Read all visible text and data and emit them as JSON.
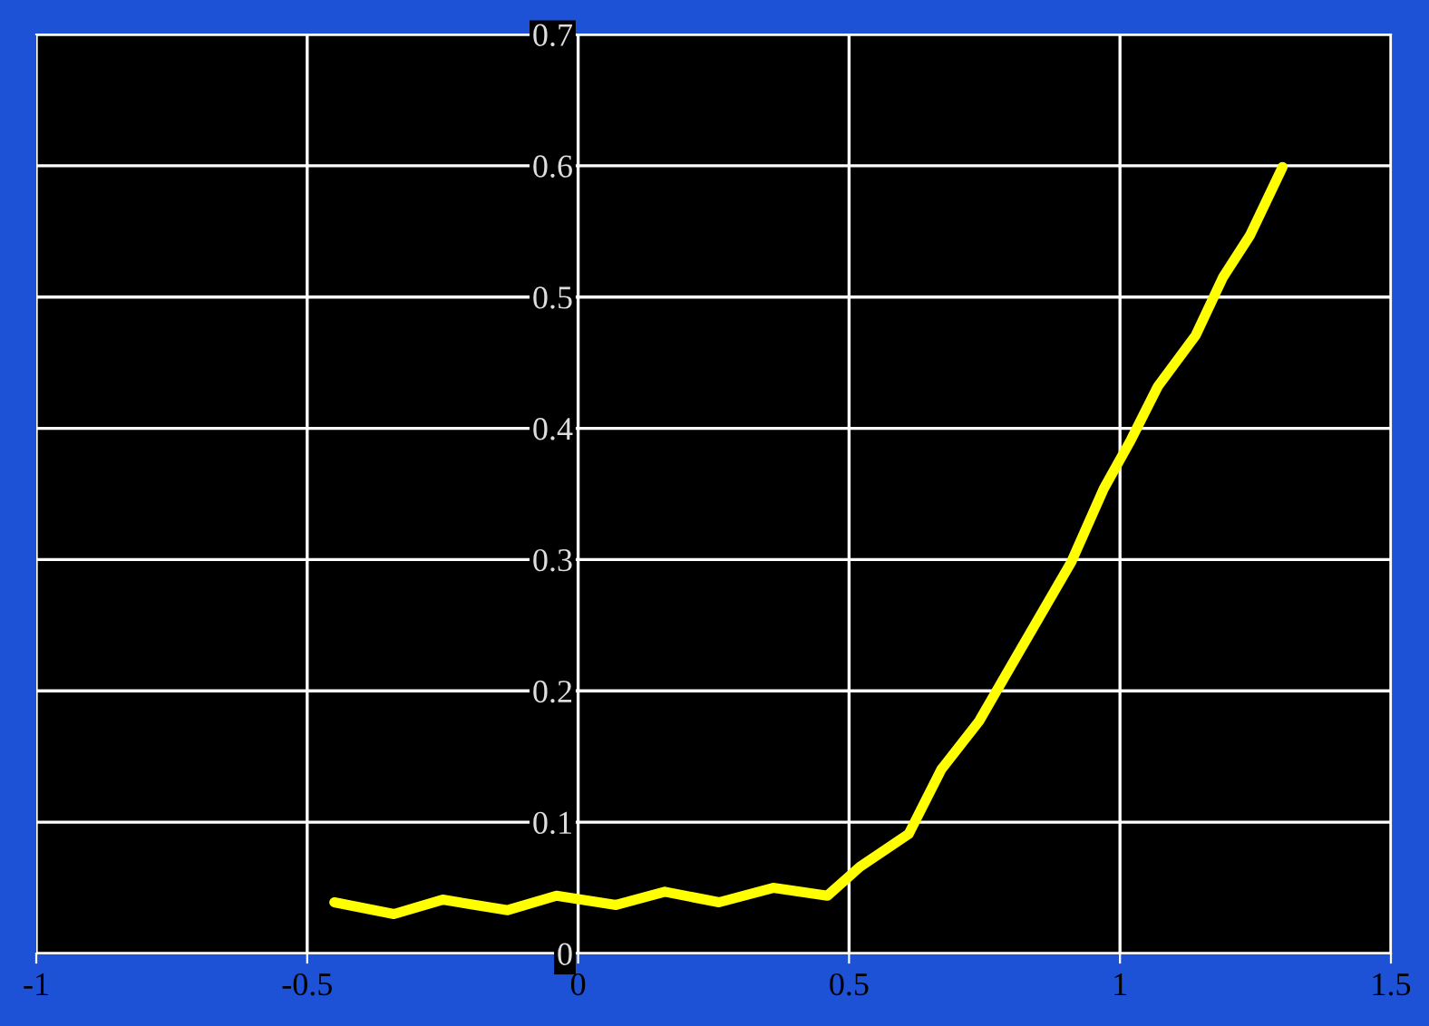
{
  "chart_data": {
    "type": "line",
    "x": [
      -0.45,
      -0.34,
      -0.25,
      -0.13,
      -0.04,
      0.07,
      0.16,
      0.26,
      0.36,
      0.46,
      0.52,
      0.61,
      0.67,
      0.74,
      0.81,
      0.91,
      0.97,
      1.02,
      1.07,
      1.14,
      1.19,
      1.24,
      1.3
    ],
    "series": [
      {
        "color": "#ffff00",
        "values": [
          0.039,
          0.03,
          0.041,
          0.033,
          0.044,
          0.037,
          0.047,
          0.039,
          0.05,
          0.044,
          0.066,
          0.091,
          0.14,
          0.177,
          0.227,
          0.298,
          0.354,
          0.391,
          0.432,
          0.471,
          0.515,
          0.547,
          0.599
        ]
      }
    ],
    "xlim": [
      -1,
      1.5
    ],
    "xticks": [
      -1,
      -0.5,
      0,
      0.5,
      1,
      1.5
    ],
    "ylim": [
      0,
      0.7
    ],
    "yticks": [
      0,
      0.1,
      0.2,
      0.3,
      0.4,
      0.5,
      0.6,
      0.7
    ],
    "grid": true,
    "marker": "none",
    "line_style": "solid"
  }
}
